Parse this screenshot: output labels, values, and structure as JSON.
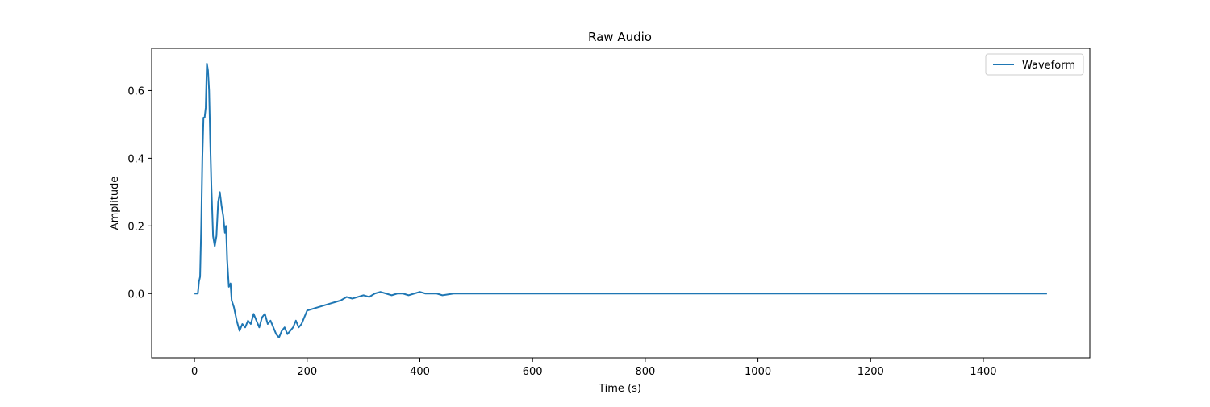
{
  "chart_data": {
    "type": "line",
    "title": "Raw Audio",
    "xlabel": "Time (s)",
    "ylabel": "Amplitude",
    "xlim": [
      -76,
      1589
    ],
    "ylim": [
      -0.19,
      0.725
    ],
    "xticks": [
      0,
      200,
      400,
      600,
      800,
      1000,
      1200,
      1400
    ],
    "xtick_labels": [
      "0",
      "200",
      "400",
      "600",
      "800",
      "1000",
      "1200",
      "1400"
    ],
    "yticks": [
      0.0,
      0.2,
      0.4,
      0.6
    ],
    "ytick_labels": [
      "0.0",
      "0.2",
      "0.4",
      "0.6"
    ],
    "grid": false,
    "legend": {
      "placement": "top-right",
      "entries": [
        "Waveform"
      ]
    },
    "series": [
      {
        "name": "Waveform",
        "color": "#1f77b4",
        "x_range": [
          0,
          1513
        ],
        "points": [
          [
            0,
            0.0
          ],
          [
            6,
            0.0
          ],
          [
            8,
            0.035
          ],
          [
            10,
            0.05
          ],
          [
            12,
            0.2
          ],
          [
            14,
            0.4
          ],
          [
            16,
            0.52
          ],
          [
            18,
            0.52
          ],
          [
            20,
            0.55
          ],
          [
            22,
            0.68
          ],
          [
            24,
            0.66
          ],
          [
            26,
            0.6
          ],
          [
            28,
            0.45
          ],
          [
            30,
            0.32
          ],
          [
            33,
            0.17
          ],
          [
            36,
            0.14
          ],
          [
            39,
            0.17
          ],
          [
            42,
            0.27
          ],
          [
            45,
            0.3
          ],
          [
            48,
            0.26
          ],
          [
            51,
            0.23
          ],
          [
            54,
            0.18
          ],
          [
            56,
            0.2
          ],
          [
            58,
            0.1
          ],
          [
            61,
            0.02
          ],
          [
            64,
            0.03
          ],
          [
            66,
            -0.02
          ],
          [
            70,
            -0.04
          ],
          [
            75,
            -0.08
          ],
          [
            80,
            -0.11
          ],
          [
            85,
            -0.09
          ],
          [
            90,
            -0.1
          ],
          [
            95,
            -0.08
          ],
          [
            100,
            -0.09
          ],
          [
            105,
            -0.06
          ],
          [
            110,
            -0.08
          ],
          [
            115,
            -0.1
          ],
          [
            120,
            -0.07
          ],
          [
            125,
            -0.06
          ],
          [
            130,
            -0.09
          ],
          [
            135,
            -0.08
          ],
          [
            140,
            -0.1
          ],
          [
            145,
            -0.12
          ],
          [
            150,
            -0.13
          ],
          [
            155,
            -0.11
          ],
          [
            160,
            -0.1
          ],
          [
            165,
            -0.12
          ],
          [
            170,
            -0.11
          ],
          [
            175,
            -0.1
          ],
          [
            180,
            -0.08
          ],
          [
            185,
            -0.1
          ],
          [
            190,
            -0.09
          ],
          [
            195,
            -0.07
          ],
          [
            200,
            -0.05
          ],
          [
            210,
            -0.045
          ],
          [
            220,
            -0.04
          ],
          [
            230,
            -0.035
          ],
          [
            240,
            -0.03
          ],
          [
            250,
            -0.025
          ],
          [
            260,
            -0.02
          ],
          [
            270,
            -0.01
          ],
          [
            280,
            -0.015
          ],
          [
            290,
            -0.01
          ],
          [
            300,
            -0.005
          ],
          [
            310,
            -0.01
          ],
          [
            320,
            0.0
          ],
          [
            330,
            0.005
          ],
          [
            340,
            0.0
          ],
          [
            350,
            -0.005
          ],
          [
            360,
            0.0
          ],
          [
            370,
            0.0
          ],
          [
            380,
            -0.005
          ],
          [
            390,
            0.0
          ],
          [
            400,
            0.005
          ],
          [
            410,
            0.0
          ],
          [
            420,
            0.0
          ],
          [
            430,
            0.0
          ],
          [
            440,
            -0.005
          ],
          [
            460,
            0.0
          ],
          [
            480,
            0.0
          ],
          [
            500,
            0.0
          ],
          [
            530,
            0.0
          ],
          [
            560,
            0.0
          ],
          [
            600,
            0.0
          ],
          [
            650,
            0.0
          ],
          [
            700,
            0.0
          ],
          [
            800,
            0.0
          ],
          [
            900,
            0.0
          ],
          [
            1000,
            0.0
          ],
          [
            1100,
            0.0
          ],
          [
            1200,
            0.0
          ],
          [
            1300,
            0.0
          ],
          [
            1400,
            0.0
          ],
          [
            1513,
            0.0
          ]
        ]
      }
    ]
  }
}
